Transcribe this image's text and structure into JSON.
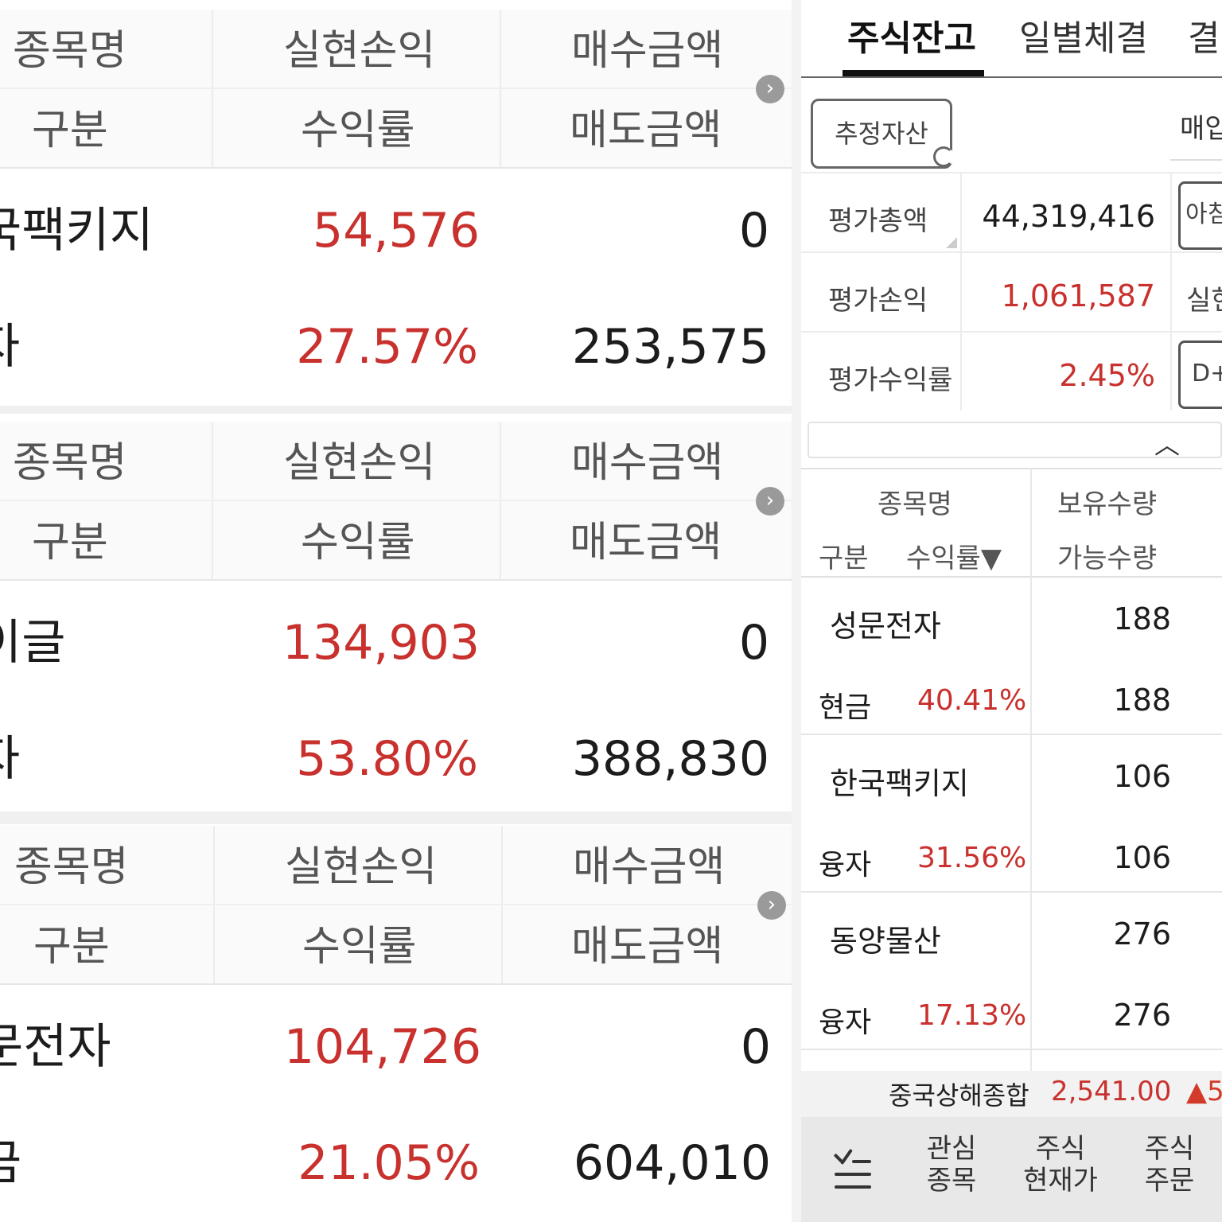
{
  "panel_headers": {
    "col1_top": "종목명",
    "col1_bottom": "구분",
    "col2_top": "실현손익",
    "col2_bottom": "수익률",
    "col3_top": "매수금액",
    "col3_bottom": "매도금액"
  },
  "panels": [
    {
      "name": "국팩키지",
      "category": "자",
      "realized_pl": "54,576",
      "return_rate": "27.57%",
      "buy_amount": "0",
      "sell_amount": "253,575"
    },
    {
      "name": "이글",
      "category": "자",
      "realized_pl": "134,903",
      "return_rate": "53.80%",
      "buy_amount": "0",
      "sell_amount": "388,830"
    },
    {
      "name": "문전자",
      "category": "금",
      "realized_pl": "104,726",
      "return_rate": "21.05%",
      "buy_amount": "0",
      "sell_amount": "604,010"
    }
  ],
  "right": {
    "tabs": [
      "주식잔고",
      "일별체결",
      "결"
    ],
    "estimate_button": "추정자산",
    "buy_label_cut": "매입",
    "summary": [
      {
        "label": "평가총액",
        "value": "44,319,416",
        "side": "아침"
      },
      {
        "label": "평가손익",
        "value": "1,061,587",
        "side": "실현"
      },
      {
        "label": "평가수익률",
        "value": "2.45%",
        "side": "D+"
      }
    ],
    "list_header": {
      "name": "종목명",
      "category": "구분",
      "rate": "수익률▼",
      "held": "보유수량",
      "available": "가능수량"
    },
    "holdings": [
      {
        "name": "성문전자",
        "category": "현금",
        "rate": "40.41%",
        "held": "188",
        "available": "188"
      },
      {
        "name": "한국팩키지",
        "category": "융자",
        "rate": "31.56%",
        "held": "106",
        "available": "106"
      },
      {
        "name": "동양물산",
        "category": "융자",
        "rate": "17.13%",
        "held": "276",
        "available": "276"
      }
    ],
    "ticker": {
      "name": "중국상해종합",
      "value": "2,541.00",
      "change": "▲5"
    },
    "bottom_nav": [
      {
        "line1": "관심",
        "line2": "종목"
      },
      {
        "line1": "주식",
        "line2": "현재가"
      },
      {
        "line1": "주식",
        "line2": "주문"
      }
    ]
  },
  "colors": {
    "up_red": "#c8312d",
    "text_dark": "#1c1c1c",
    "header_bg": "#fafafa"
  }
}
